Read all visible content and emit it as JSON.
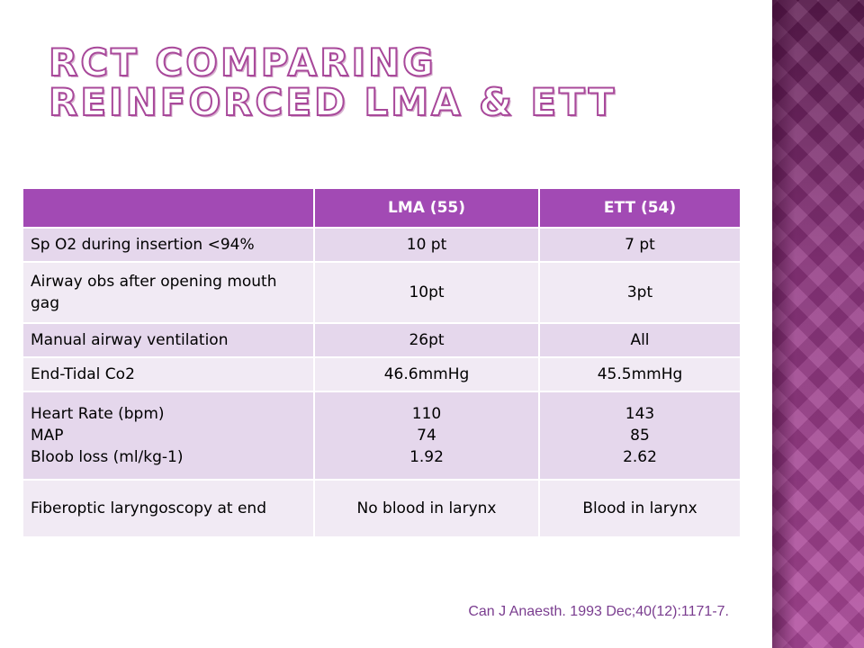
{
  "slide": {
    "title": "RCT comparing reinforced LMA & ETT",
    "citation": "Can J Anaesth. 1993 Dec;40(12):1171-7."
  },
  "table": {
    "headers": [
      "",
      "LMA (55)",
      "ETT (54)"
    ],
    "rows": [
      {
        "label": [
          "Sp O2 during insertion <94%"
        ],
        "lma": [
          "10 pt"
        ],
        "ett": [
          "7 pt"
        ]
      },
      {
        "label": [
          "Airway obs after opening mouth gag"
        ],
        "lma": [
          "10pt"
        ],
        "ett": [
          "3pt"
        ]
      },
      {
        "label": [
          "Manual airway ventilation"
        ],
        "lma": [
          "26pt"
        ],
        "ett": [
          "All"
        ]
      },
      {
        "label": [
          "End-Tidal Co2"
        ],
        "lma": [
          "46.6mmHg"
        ],
        "ett": [
          "45.5mmHg"
        ]
      },
      {
        "label": [
          "Heart Rate (bpm)",
          "MAP",
          "Bloob loss (ml/kg-1)"
        ],
        "lma": [
          "110",
          "74",
          "1.92"
        ],
        "ett": [
          "143",
          "85",
          "2.62"
        ]
      },
      {
        "label": [
          "Fiberoptic laryngoscopy at end"
        ],
        "lma": [
          "No blood in larynx"
        ],
        "ett": [
          "Blood in larynx"
        ]
      }
    ]
  }
}
